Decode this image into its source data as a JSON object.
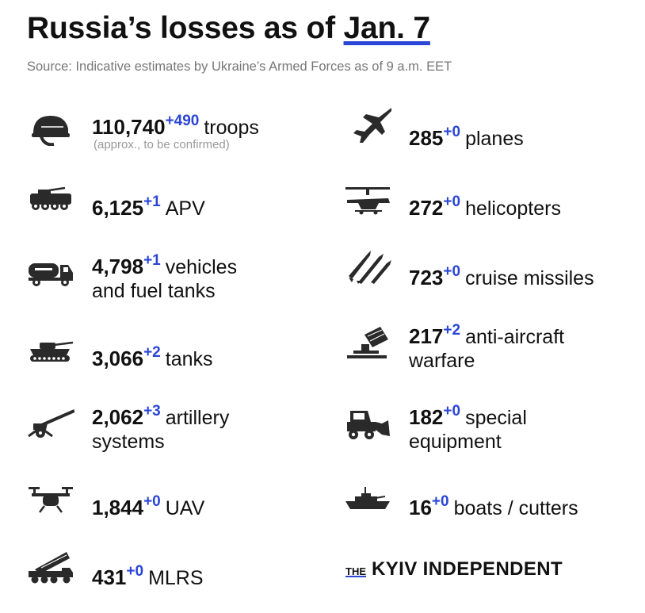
{
  "title": {
    "main": "Russia’s losses as of",
    "date": "Jan. 7"
  },
  "source": "Source: Indicative estimates by Ukraine’s Armed Forces as of 9 a.m. EET",
  "left": [
    {
      "icon": "helmet-icon",
      "value": "110,740",
      "delta": "+490",
      "label": "troops",
      "note": "(approx., to be confirmed)"
    },
    {
      "icon": "apv-icon",
      "value": "6,125",
      "delta": "+1",
      "label": "APV"
    },
    {
      "icon": "fuel-truck-icon",
      "value": "4,798",
      "delta": "+1",
      "label": "vehicles",
      "label2": "and fuel tanks"
    },
    {
      "icon": "tank-icon",
      "value": "3,066",
      "delta": "+2",
      "label": "tanks"
    },
    {
      "icon": "artillery-icon",
      "value": "2,062",
      "delta": "+3",
      "label": "artillery",
      "label2": "systems"
    },
    {
      "icon": "drone-icon",
      "value": "1,844",
      "delta": "+0",
      "label": "UAV"
    },
    {
      "icon": "mlrs-icon",
      "value": "431",
      "delta": "+0",
      "label": "MLRS"
    }
  ],
  "right": [
    {
      "icon": "plane-icon",
      "value": "285",
      "delta": "+0",
      "label": "planes"
    },
    {
      "icon": "helicopter-icon",
      "value": "272",
      "delta": "+0",
      "label": "helicopters"
    },
    {
      "icon": "missile-icon",
      "value": "723",
      "delta": "+0",
      "label": "cruise missiles"
    },
    {
      "icon": "anti-aircraft-icon",
      "value": "217",
      "delta": "+2",
      "label": "anti-aircraft",
      "label2": "warfare"
    },
    {
      "icon": "bulldozer-icon",
      "value": "182",
      "delta": "+0",
      "label": "special",
      "label2": "equipment"
    },
    {
      "icon": "warship-icon",
      "value": "16",
      "delta": "+0",
      "label": "boats / cutters"
    }
  ],
  "brand": {
    "the": "THE",
    "name": "KYIV INDEPENDENT"
  }
}
